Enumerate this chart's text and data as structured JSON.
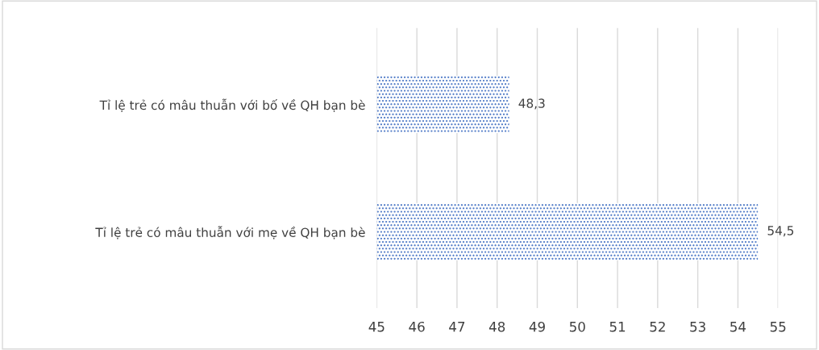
{
  "chart_data": {
    "type": "bar",
    "orientation": "horizontal",
    "categories": [
      "Tỉ lệ trẻ có mâu thuẫn với bố về QH bạn bè",
      "Tỉ lệ trẻ có mâu thuẫn với mẹ về QH bạn bè"
    ],
    "values": [
      48.3,
      54.5
    ],
    "value_labels": [
      "48,3",
      "54,5"
    ],
    "color": "#4472c4",
    "xlim": [
      45,
      55
    ],
    "xticks": [
      45,
      46,
      47,
      48,
      49,
      50,
      51,
      52,
      53,
      54,
      55
    ],
    "grid": "x",
    "legend": false
  }
}
